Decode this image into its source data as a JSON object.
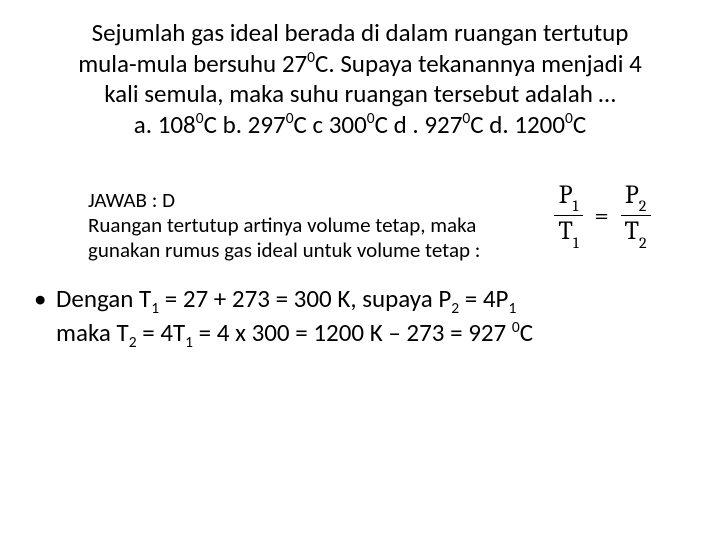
{
  "question": {
    "line1": "Sejumlah gas ideal berada di dalam ruangan tertutup",
    "line2_a": "mula-mula bersuhu 27",
    "line2_b": "C. Supaya tekanannya menjadi 4",
    "line3": "kali semula, maka suhu ruangan tersebut adalah …",
    "opts_a_pre": "a. 108",
    "opts_b_pre": "C    b. 297",
    "opts_c_pre": "C   c 300",
    "opts_d_pre": "C  d . 927",
    "opts_e_pre": "C  d.  1200",
    "opts_end": "C",
    "deg": "0"
  },
  "answer": {
    "line1": "JAWAB : D",
    "line2": "Ruangan tertutup artinya volume tetap, maka",
    "line3": "gunakan rumus gas ideal untuk volume tetap :"
  },
  "formula": {
    "P": "P",
    "T": "T",
    "one": "1",
    "two": "2",
    "eq": "="
  },
  "solution": {
    "bullet": "•",
    "l1a": "Dengan T",
    "l1b": " = 27 + 273 = 300 K, supaya  P",
    "l1c": " = 4P",
    "l2a": "maka T",
    "l2b": " = 4T",
    "l2c": " = 4 x 300 = 1200 K – 273 = 927 ",
    "l2d": "C",
    "s1": "1",
    "s2": "2",
    "deg": "0"
  },
  "colors": {
    "text": "#000000",
    "background": "#ffffff"
  },
  "fonts": {
    "body_size_pt": 25,
    "answer_size_pt": 21,
    "formula_size_pt": 26
  }
}
